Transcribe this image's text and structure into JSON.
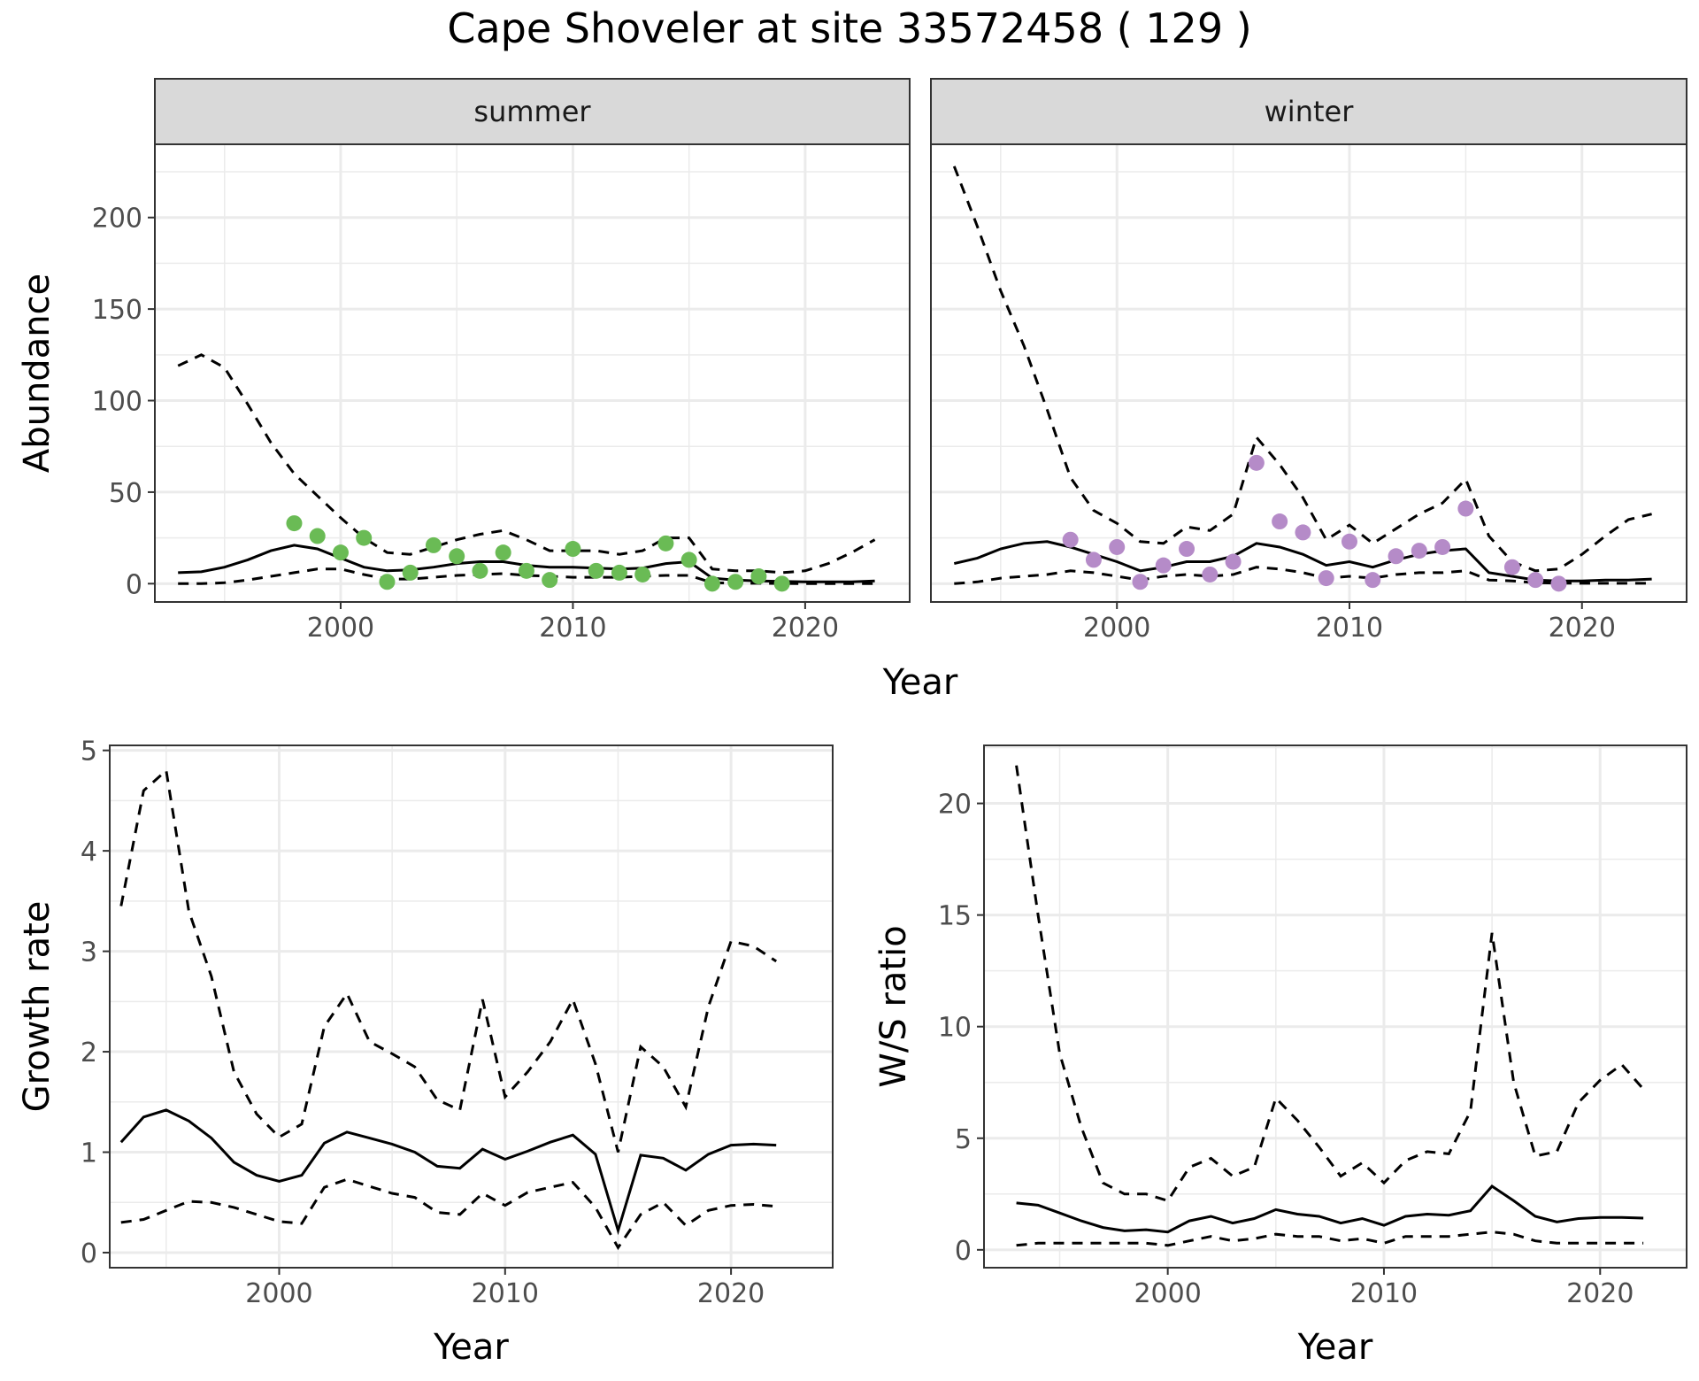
{
  "title": "Cape Shoveler at site 33572458 ( 129 )",
  "colors": {
    "summer_points": "#6ABB55",
    "winter_points": "#B58BC8",
    "lines": "#000000",
    "grid": "#EBEBEB",
    "strip_fill": "#D9D9D9"
  },
  "chart_data": [
    {
      "type": "line",
      "panel": "summer",
      "strip_label": "summer",
      "xlabel": "Year",
      "ylabel": "Abundance",
      "xlim": [
        1992,
        2024.5
      ],
      "ylim": [
        -10,
        240
      ],
      "xticks": [
        2000,
        2010,
        2020
      ],
      "yticks": [
        0,
        50,
        100,
        150,
        200
      ],
      "grid": true,
      "lines": {
        "x": [
          1993,
          1994,
          1995,
          1996,
          1997,
          1998,
          1999,
          2000,
          2001,
          2002,
          2003,
          2004,
          2005,
          2006,
          2007,
          2008,
          2009,
          2010,
          2011,
          2012,
          2013,
          2014,
          2015,
          2016,
          2017,
          2018,
          2019,
          2020,
          2021,
          2022,
          2023
        ],
        "fit": [
          6,
          6.5,
          9,
          13,
          18,
          21,
          19,
          14,
          9,
          7,
          7.5,
          9,
          11,
          12,
          12,
          10,
          9,
          9,
          8.5,
          8,
          8.5,
          11,
          12,
          3,
          2,
          1.5,
          1.2,
          1,
          1,
          1,
          1.5
        ],
        "upper": [
          119,
          125,
          118,
          98,
          77,
          60,
          48,
          36,
          25,
          17,
          16,
          20,
          24,
          27,
          29,
          24,
          18,
          18,
          18,
          16,
          18,
          25,
          25,
          8,
          7,
          7,
          6,
          7,
          11,
          17,
          24
        ],
        "lower": [
          0,
          0,
          0.5,
          2,
          4,
          6,
          8,
          8,
          5,
          2.5,
          2.5,
          3.5,
          4.5,
          5,
          5.5,
          4.5,
          4,
          3.5,
          3.5,
          3.5,
          4,
          4.5,
          4.5,
          0.5,
          0.3,
          0.2,
          0.1,
          0,
          0,
          0,
          0
        ]
      },
      "points": {
        "x": [
          1998,
          1999,
          2000,
          2001,
          2002,
          2003,
          2004,
          2005,
          2006,
          2007,
          2008,
          2009,
          2010,
          2011,
          2012,
          2013,
          2014,
          2015,
          2016,
          2017,
          2018,
          2019
        ],
        "y": [
          33,
          26,
          17,
          25,
          1,
          6,
          21,
          15,
          7,
          17,
          7,
          2,
          19,
          7,
          6,
          5,
          22,
          13,
          0,
          1,
          4,
          0
        ]
      }
    },
    {
      "type": "line",
      "panel": "winter",
      "strip_label": "winter",
      "xlabel": "Year",
      "ylabel": "Abundance",
      "xlim": [
        1992,
        2024.5
      ],
      "ylim": [
        -10,
        240
      ],
      "xticks": [
        2000,
        2010,
        2020
      ],
      "yticks": [
        0,
        50,
        100,
        150,
        200
      ],
      "grid": true,
      "lines": {
        "x": [
          1993,
          1994,
          1995,
          1996,
          1997,
          1998,
          1999,
          2000,
          2001,
          2002,
          2003,
          2004,
          2005,
          2006,
          2007,
          2008,
          2009,
          2010,
          2011,
          2012,
          2013,
          2014,
          2015,
          2016,
          2017,
          2018,
          2019,
          2020,
          2021,
          2022,
          2023
        ],
        "fit": [
          11,
          14,
          19,
          22,
          23,
          20,
          16,
          12,
          7,
          9,
          12,
          12,
          15,
          22,
          20,
          16,
          10,
          12,
          9,
          13,
          16,
          18,
          19,
          6,
          4,
          2,
          1.5,
          1.5,
          2,
          2,
          2.5
        ],
        "upper": [
          228,
          195,
          160,
          130,
          95,
          58,
          40,
          33,
          23,
          22,
          31,
          29,
          38,
          80,
          65,
          47,
          24,
          32,
          22,
          30,
          38,
          44,
          57,
          26,
          12,
          7,
          8,
          16,
          26,
          35,
          38
        ],
        "lower": [
          0,
          1,
          3,
          4,
          5,
          7,
          6,
          4,
          2,
          4,
          5,
          4,
          5,
          9,
          8,
          6,
          3,
          4,
          3,
          5,
          6,
          6,
          7,
          2,
          1.5,
          0.5,
          0.3,
          0.2,
          0.2,
          0.2,
          0.2
        ]
      },
      "points": {
        "x": [
          1998,
          1999,
          2000,
          2001,
          2002,
          2003,
          2004,
          2005,
          2006,
          2007,
          2008,
          2009,
          2010,
          2011,
          2012,
          2013,
          2014,
          2015,
          2017,
          2018,
          2019
        ],
        "y": [
          24,
          13,
          20,
          1,
          10,
          19,
          5,
          12,
          66,
          34,
          28,
          3,
          23,
          2,
          15,
          18,
          20,
          41,
          9,
          2,
          0
        ]
      }
    },
    {
      "type": "line",
      "panel": "growth",
      "xlabel": "Year",
      "ylabel": "Growth rate",
      "xlim": [
        1992.5,
        2024.5
      ],
      "ylim": [
        -0.15,
        5.05
      ],
      "xticks": [
        2000,
        2010,
        2020
      ],
      "yticks": [
        0,
        1,
        2,
        3,
        4,
        5
      ],
      "grid": true,
      "lines": {
        "x": [
          1993,
          1994,
          1995,
          1996,
          1997,
          1998,
          1999,
          2000,
          2001,
          2002,
          2003,
          2004,
          2005,
          2006,
          2007,
          2008,
          2009,
          2010,
          2011,
          2012,
          2013,
          2014,
          2015,
          2016,
          2017,
          2018,
          2019,
          2020,
          2021,
          2022
        ],
        "fit": [
          1.1,
          1.35,
          1.42,
          1.31,
          1.14,
          0.9,
          0.77,
          0.71,
          0.77,
          1.09,
          1.2,
          1.14,
          1.08,
          1.0,
          0.86,
          0.84,
          1.03,
          0.93,
          1.01,
          1.1,
          1.17,
          0.98,
          0.22,
          0.97,
          0.94,
          0.82,
          0.98,
          1.07,
          1.08,
          1.07
        ],
        "upper": [
          3.45,
          4.6,
          4.8,
          3.4,
          2.75,
          1.8,
          1.38,
          1.15,
          1.28,
          2.25,
          2.58,
          2.1,
          1.98,
          1.85,
          1.52,
          1.42,
          2.52,
          1.55,
          1.8,
          2.1,
          2.52,
          1.88,
          1.0,
          2.05,
          1.85,
          1.45,
          2.45,
          3.1,
          3.05,
          2.9
        ],
        "lower": [
          0.3,
          0.33,
          0.42,
          0.51,
          0.5,
          0.45,
          0.38,
          0.31,
          0.29,
          0.65,
          0.73,
          0.66,
          0.59,
          0.55,
          0.4,
          0.38,
          0.59,
          0.47,
          0.6,
          0.65,
          0.7,
          0.45,
          0.05,
          0.38,
          0.5,
          0.27,
          0.42,
          0.47,
          0.48,
          0.46
        ]
      }
    },
    {
      "type": "line",
      "panel": "ws_ratio",
      "xlabel": "Year",
      "ylabel": "W/S ratio",
      "xlim": [
        1991.5,
        2024
      ],
      "ylim": [
        -0.8,
        22.6
      ],
      "xticks": [
        2000,
        2010,
        2020
      ],
      "yticks": [
        0,
        5,
        10,
        15,
        20
      ],
      "grid": true,
      "lines": {
        "x": [
          1993,
          1994,
          1995,
          1996,
          1997,
          1998,
          1999,
          2000,
          2001,
          2002,
          2003,
          2004,
          2005,
          2006,
          2007,
          2008,
          2009,
          2010,
          2011,
          2012,
          2013,
          2014,
          2015,
          2016,
          2017,
          2018,
          2019,
          2020,
          2021,
          2022
        ],
        "fit": [
          2.1,
          2.0,
          1.65,
          1.3,
          1.0,
          0.85,
          0.9,
          0.8,
          1.3,
          1.5,
          1.2,
          1.4,
          1.8,
          1.6,
          1.5,
          1.2,
          1.4,
          1.1,
          1.5,
          1.6,
          1.55,
          1.75,
          2.85,
          2.2,
          1.5,
          1.25,
          1.4,
          1.45,
          1.45,
          1.42
        ],
        "upper": [
          21.7,
          15.0,
          8.8,
          5.5,
          3.0,
          2.5,
          2.5,
          2.2,
          3.7,
          4.1,
          3.3,
          3.7,
          6.8,
          5.8,
          4.6,
          3.3,
          3.9,
          3.0,
          4.0,
          4.4,
          4.3,
          6.2,
          14.2,
          7.5,
          4.2,
          4.4,
          6.6,
          7.6,
          8.3,
          7.2
        ],
        "lower": [
          0.2,
          0.3,
          0.3,
          0.3,
          0.3,
          0.3,
          0.3,
          0.2,
          0.4,
          0.6,
          0.4,
          0.5,
          0.7,
          0.6,
          0.6,
          0.4,
          0.5,
          0.3,
          0.6,
          0.6,
          0.6,
          0.7,
          0.8,
          0.7,
          0.4,
          0.3,
          0.3,
          0.3,
          0.3,
          0.3
        ]
      }
    }
  ]
}
